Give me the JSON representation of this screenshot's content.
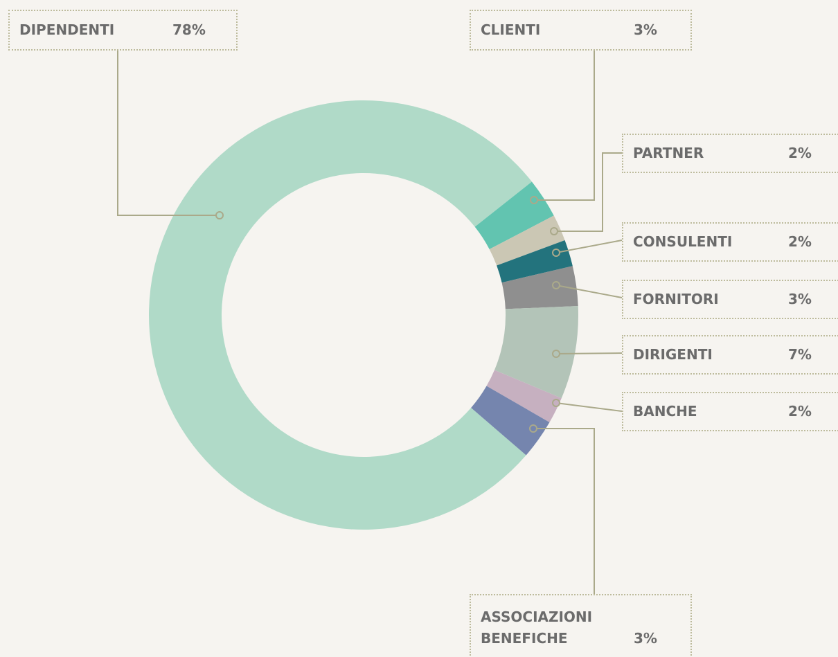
{
  "chart_data": {
    "type": "donut",
    "categories": [
      "DIPENDENTI",
      "CLIENTI",
      "PARTNER",
      "CONSULENTI",
      "FORNITORI",
      "DIRIGENTI",
      "BANCHE",
      "ASSOCIAZIONI BENEFICHE"
    ],
    "values": [
      78,
      3,
      2,
      2,
      3,
      7,
      2,
      3
    ],
    "value_labels": [
      "78%",
      "3%",
      "2%",
      "2%",
      "3%",
      "7%",
      "2%",
      "3%"
    ],
    "colors": [
      "#b0dac8",
      "#62c4b0",
      "#cbc7b4",
      "#23737d",
      "#8f8f8f",
      "#b3c4b8",
      "#c6b0c0",
      "#7585ae"
    ]
  }
}
